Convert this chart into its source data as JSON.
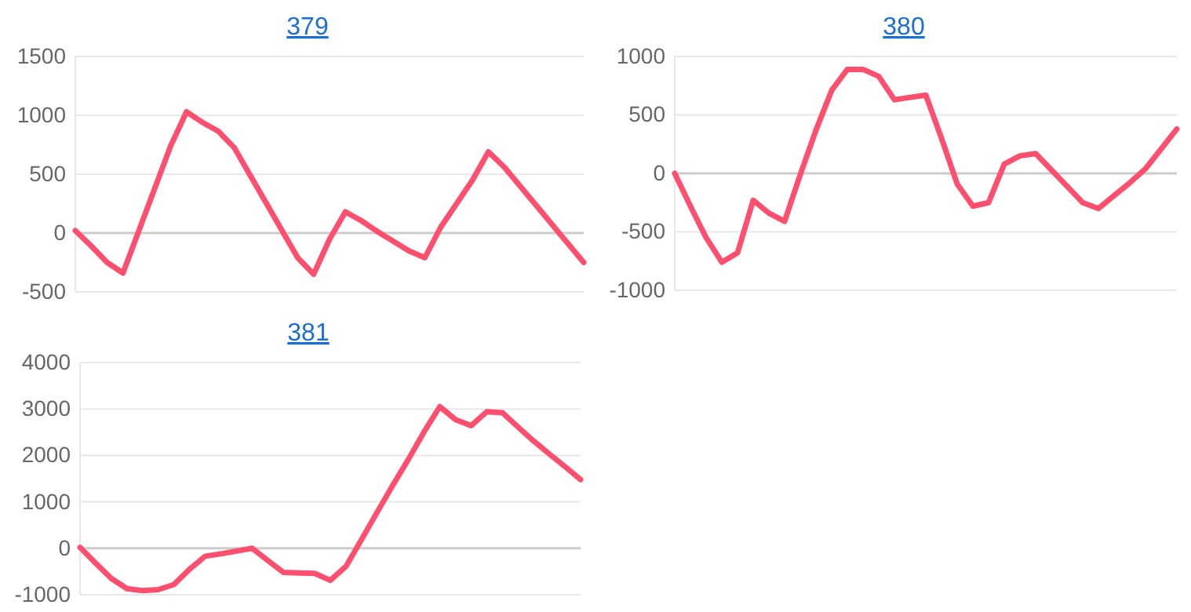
{
  "chart_data": [
    {
      "type": "line",
      "title": "379",
      "categories": [
        null,
        null,
        null,
        null,
        null,
        null,
        null,
        null,
        null,
        null,
        null,
        null,
        null,
        null,
        null,
        null,
        null,
        null,
        null,
        null,
        null,
        null,
        null,
        null,
        null,
        null,
        null,
        null,
        null,
        null,
        null,
        null,
        null
      ],
      "series": [
        {
          "color": "#ff4f6e",
          "values": [
            20,
            -110,
            -250,
            -340,
            20,
            380,
            740,
            1030,
            940,
            865,
            726,
            492,
            258,
            24,
            -210,
            -350,
            -53,
            180,
            105,
            14,
            -69,
            -152,
            -210,
            50,
            250,
            450,
            690,
            560,
            398,
            236,
            74,
            -88,
            -250
          ]
        }
      ],
      "ylim": [
        -500,
        1500
      ],
      "yticks": [
        -500,
        0,
        500,
        1000,
        1500
      ],
      "grid": "y",
      "tick_labels": "y"
    },
    {
      "type": "line",
      "title": "380",
      "categories": [
        null,
        null,
        null,
        null,
        null,
        null,
        null,
        null,
        null,
        null,
        null,
        null,
        null,
        null,
        null,
        null,
        null,
        null,
        null,
        null,
        null,
        null,
        null,
        null,
        null,
        null,
        null,
        null,
        null,
        null,
        null,
        null,
        null
      ],
      "series": [
        {
          "color": "#ff4f6e",
          "values": [
            0,
            -280,
            -550,
            -760,
            -680,
            -230,
            -340,
            -410,
            -10,
            370,
            710,
            890,
            890,
            830,
            630,
            650,
            670,
            300,
            -90,
            -280,
            -250,
            80,
            150,
            170,
            30,
            -110,
            -250,
            -300,
            -190,
            -80,
            40,
            210,
            380
          ]
        }
      ],
      "ylim": [
        -1000,
        1000
      ],
      "yticks": [
        -1000,
        -500,
        0,
        500,
        1000
      ],
      "grid": "y",
      "tick_labels": "y"
    },
    {
      "type": "line",
      "title": "381",
      "categories": [
        null,
        null,
        null,
        null,
        null,
        null,
        null,
        null,
        null,
        null,
        null,
        null,
        null,
        null,
        null,
        null,
        null,
        null,
        null,
        null,
        null,
        null,
        null,
        null,
        null,
        null,
        null,
        null,
        null,
        null,
        null,
        null,
        null
      ],
      "series": [
        {
          "color": "#ff4f6e",
          "values": [
            20,
            -320,
            -650,
            -870,
            -910,
            -890,
            -780,
            -450,
            -170,
            -120,
            -60,
            0,
            -260,
            -520,
            -530,
            -540,
            -690,
            -390,
            190,
            780,
            1360,
            1920,
            2510,
            3050,
            2770,
            2640,
            2940,
            2920,
            2610,
            2310,
            2030,
            1760,
            1480
          ]
        }
      ],
      "ylim": [
        -1000,
        4000
      ],
      "yticks": [
        -1000,
        0,
        1000,
        2000,
        3000,
        4000
      ],
      "grid": "y",
      "tick_labels": "y"
    }
  ]
}
